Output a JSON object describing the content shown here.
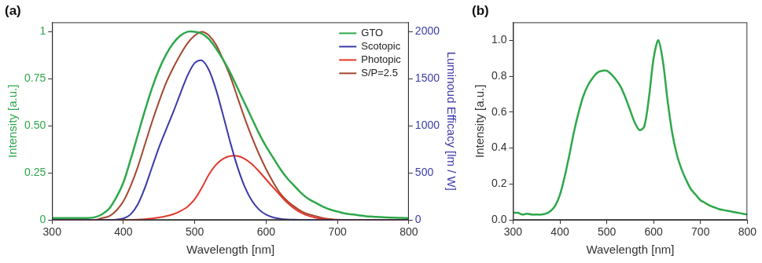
{
  "chart_data": [
    {
      "type": "line",
      "title": "(a)",
      "x_label": "Wavelength [nm]",
      "y_label": "Intensity [a.u.]",
      "y2_label": "Luminoud Efficacy [lm / W]",
      "x": [
        300,
        310,
        320,
        330,
        340,
        350,
        360,
        370,
        380,
        390,
        400,
        410,
        420,
        430,
        440,
        450,
        460,
        470,
        480,
        490,
        500,
        510,
        520,
        530,
        540,
        550,
        560,
        570,
        580,
        590,
        600,
        610,
        620,
        630,
        640,
        650,
        660,
        670,
        680,
        690,
        700,
        710,
        720,
        730,
        740,
        750,
        760,
        770,
        780,
        790,
        800
      ],
      "series": [
        {
          "name": "GTO",
          "color": "#2ea84a",
          "axis": "y",
          "values": [
            0.01,
            0.01,
            0.01,
            0.01,
            0.01,
            0.01,
            0.015,
            0.03,
            0.06,
            0.12,
            0.2,
            0.32,
            0.45,
            0.58,
            0.7,
            0.8,
            0.88,
            0.94,
            0.98,
            1.0,
            1.0,
            0.99,
            0.96,
            0.91,
            0.85,
            0.78,
            0.7,
            0.62,
            0.54,
            0.46,
            0.39,
            0.33,
            0.27,
            0.22,
            0.18,
            0.14,
            0.11,
            0.09,
            0.07,
            0.055,
            0.045,
            0.035,
            0.03,
            0.025,
            0.02,
            0.018,
            0.015,
            0.013,
            0.012,
            0.011,
            0.01
          ]
        },
        {
          "name": "Scotopic",
          "color": "#3a3aa8",
          "axis": "y2",
          "values": [
            0,
            0,
            0,
            0,
            0,
            0,
            0,
            0,
            1,
            4,
            16,
            59,
            164,
            340,
            558,
            774,
            964,
            1149,
            1348,
            1537,
            1669,
            1695,
            1590,
            1379,
            1105,
            818,
            559,
            353,
            206,
            111,
            56,
            27,
            13,
            6,
            3,
            1,
            1,
            0,
            0,
            0,
            0,
            0,
            0,
            0,
            0,
            0,
            0,
            0,
            0,
            0,
            0
          ]
        },
        {
          "name": "Photopic",
          "color": "#e3382c",
          "axis": "y2",
          "values": [
            0,
            0,
            0,
            0,
            0,
            0,
            0,
            0,
            0,
            0,
            0,
            1,
            3,
            8,
            16,
            26,
            41,
            62,
            95,
            142,
            221,
            344,
            485,
            589,
            652,
            680,
            680,
            650,
            594,
            517,
            431,
            344,
            260,
            181,
            120,
            73,
            42,
            22,
            12,
            6,
            3,
            1,
            1,
            0,
            0,
            0,
            0,
            0,
            0,
            0,
            0
          ]
        },
        {
          "name": "S/P=2.5",
          "color": "#a3472f",
          "axis": "y",
          "values": [
            0,
            0,
            0,
            0,
            0,
            0,
            0,
            0.01,
            0.02,
            0.05,
            0.1,
            0.18,
            0.28,
            0.4,
            0.52,
            0.63,
            0.73,
            0.81,
            0.88,
            0.94,
            0.98,
            1.0,
            0.98,
            0.93,
            0.85,
            0.76,
            0.65,
            0.54,
            0.44,
            0.35,
            0.27,
            0.2,
            0.14,
            0.1,
            0.07,
            0.045,
            0.03,
            0.02,
            0.01,
            0.005,
            0,
            0,
            0,
            0,
            0,
            0,
            0,
            0,
            0,
            0,
            0
          ]
        }
      ],
      "xlim": [
        300,
        800
      ],
      "xticks": [
        300,
        400,
        500,
        600,
        700,
        800
      ],
      "ylim": [
        0,
        1.05
      ],
      "yticks": [
        0,
        0.25,
        {
          "value": 0.5,
          "label": "0.50"
        },
        0.75,
        1
      ],
      "y2lim": [
        0,
        2100
      ],
      "y2ticks": [
        0,
        500,
        1000,
        1500,
        2000
      ],
      "legend": "upper right",
      "grid": false
    },
    {
      "type": "line",
      "title": "(b)",
      "x_label": "Wavelength [nm]",
      "y_label": "Intensity [a.u.]",
      "x": [
        300,
        310,
        320,
        330,
        340,
        350,
        360,
        370,
        380,
        390,
        400,
        410,
        420,
        430,
        440,
        450,
        460,
        470,
        480,
        490,
        500,
        510,
        520,
        530,
        540,
        550,
        560,
        570,
        580,
        590,
        600,
        610,
        620,
        630,
        640,
        650,
        660,
        670,
        680,
        690,
        700,
        710,
        720,
        730,
        740,
        750,
        760,
        770,
        780,
        790,
        800
      ],
      "series": [
        {
          "color": "#2ea84a",
          "axis": "y",
          "values": [
            0.04,
            0.04,
            0.03,
            0.035,
            0.03,
            0.03,
            0.03,
            0.035,
            0.05,
            0.08,
            0.14,
            0.24,
            0.36,
            0.49,
            0.6,
            0.69,
            0.75,
            0.79,
            0.82,
            0.83,
            0.83,
            0.81,
            0.78,
            0.74,
            0.68,
            0.61,
            0.54,
            0.5,
            0.52,
            0.68,
            0.9,
            1.0,
            0.88,
            0.66,
            0.48,
            0.36,
            0.28,
            0.22,
            0.17,
            0.14,
            0.11,
            0.095,
            0.08,
            0.07,
            0.06,
            0.055,
            0.05,
            0.045,
            0.04,
            0.035,
            0.03
          ]
        }
      ],
      "xlim": [
        300,
        800
      ],
      "xticks": [
        300,
        400,
        500,
        600,
        700,
        800
      ],
      "ylim": [
        0,
        1.1
      ],
      "yticks": [
        {
          "value": 0,
          "label": "0.0"
        },
        0.2,
        0.4,
        0.6,
        0.8,
        {
          "value": 1,
          "label": "1.0"
        }
      ],
      "grid": false
    }
  ]
}
